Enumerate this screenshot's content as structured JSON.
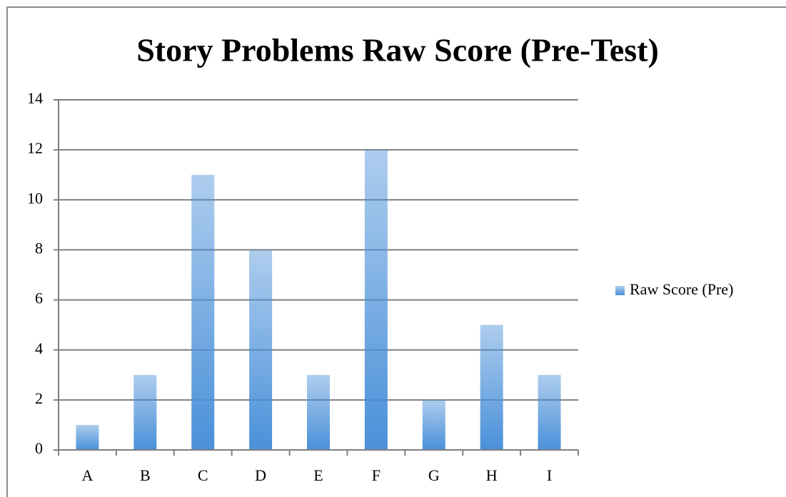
{
  "chart_data": {
    "type": "bar",
    "title": "Story Problems Raw Score (Pre-Test)",
    "categories": [
      "A",
      "B",
      "C",
      "D",
      "E",
      "F",
      "G",
      "H",
      "I"
    ],
    "series": [
      {
        "name": "Raw Score (Pre)",
        "color": "#4a90d9",
        "values": [
          1,
          3,
          11,
          8,
          3,
          12,
          2,
          5,
          3
        ]
      }
    ],
    "ylim": [
      0,
      14
    ],
    "yticks": [
      0,
      2,
      4,
      6,
      8,
      10,
      12,
      14
    ],
    "grid": true,
    "legend": "right"
  }
}
